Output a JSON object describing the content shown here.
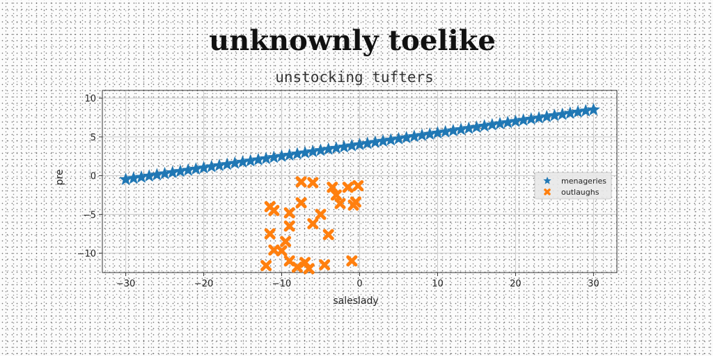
{
  "chart_data": {
    "type": "scatter",
    "title": "unknownly toelike",
    "subtitle": "unstocking tufters",
    "xlabel": "saleslady",
    "ylabel": "pre",
    "xlim": [
      -33,
      33
    ],
    "ylim": [
      -12.5,
      11
    ],
    "xticks": [
      -30,
      -20,
      -10,
      0,
      10,
      20,
      30
    ],
    "yticks": [
      -10,
      -5,
      0,
      5,
      10
    ],
    "grid": true,
    "legend_position": "right",
    "series": [
      {
        "name": "menageries",
        "marker": "star",
        "color": "#1f77b4",
        "x": [
          -30,
          -29,
          -28,
          -27,
          -26,
          -25,
          -24,
          -23,
          -22,
          -21,
          -20,
          -19,
          -18,
          -17,
          -16,
          -15,
          -14,
          -13,
          -12,
          -11,
          -10,
          -9,
          -8,
          -7,
          -6,
          -5,
          -4,
          -3,
          -2,
          -1,
          0,
          1,
          2,
          3,
          4,
          5,
          6,
          7,
          8,
          9,
          10,
          11,
          12,
          13,
          14,
          15,
          16,
          17,
          18,
          19,
          20,
          21,
          22,
          23,
          24,
          25,
          26,
          27,
          28,
          29,
          30
        ],
        "y": [
          -0.5,
          -0.35,
          -0.2,
          -0.05,
          0.1,
          0.25,
          0.4,
          0.55,
          0.7,
          0.85,
          1.0,
          1.15,
          1.3,
          1.45,
          1.6,
          1.75,
          1.9,
          2.05,
          2.2,
          2.35,
          2.5,
          2.65,
          2.8,
          2.95,
          3.1,
          3.25,
          3.4,
          3.55,
          3.7,
          3.85,
          4.0,
          4.15,
          4.3,
          4.45,
          4.6,
          4.75,
          4.9,
          5.05,
          5.2,
          5.35,
          5.5,
          5.65,
          5.8,
          5.95,
          6.1,
          6.25,
          6.4,
          6.55,
          6.7,
          6.85,
          7.0,
          7.15,
          7.3,
          7.45,
          7.6,
          7.75,
          7.9,
          8.05,
          8.2,
          8.35,
          8.5
        ]
      },
      {
        "name": "outlaughs",
        "marker": "x",
        "color": "#ff7f0e",
        "x": [
          -7.5,
          -6,
          -3.5,
          -1.5,
          -0.2,
          -3,
          -11.5,
          -11,
          -7.5,
          -9,
          -5,
          -2.5,
          -0.8,
          -0.5,
          -6,
          -9,
          -11.5,
          -4,
          -9.5,
          -11,
          -10,
          -7,
          -9,
          -8,
          -6.5,
          -12,
          -4.5,
          -1
        ],
        "y": [
          -0.8,
          -0.9,
          -1.5,
          -1.5,
          -1.3,
          -2.5,
          -4.0,
          -4.5,
          -3.5,
          -4.8,
          -5.0,
          -3.6,
          -3.8,
          -3.4,
          -6.2,
          -6.5,
          -7.5,
          -7.6,
          -8.5,
          -9.6,
          -9.7,
          -11.2,
          -11.0,
          -11.8,
          -12.0,
          -11.6,
          -11.5,
          -11.0
        ]
      }
    ]
  }
}
